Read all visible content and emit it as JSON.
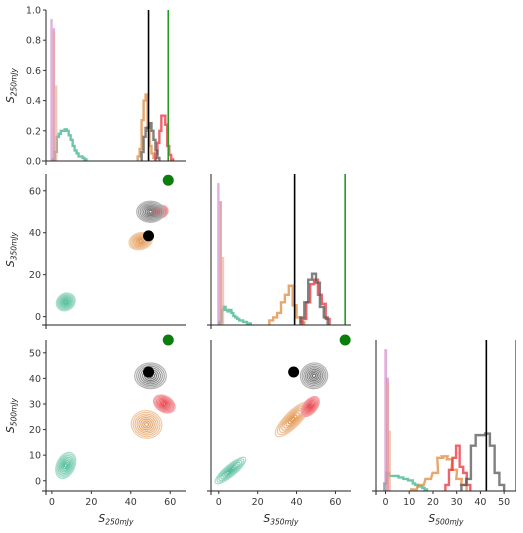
{
  "chart_data": {
    "type": "pairplot",
    "variables": [
      "S_250mJy",
      "S_350mJy",
      "S_500mJy"
    ],
    "axis_labels": {
      "S_250mJy": {
        "main": "S",
        "sub": "250mJy"
      },
      "S_350mJy": {
        "main": "S",
        "sub": "350mJy"
      },
      "S_500mJy": {
        "main": "S",
        "sub": "500mJy"
      }
    },
    "ranges": {
      "S_250mJy": [
        -3,
        68
      ],
      "S_350mJy": [
        -4,
        68
      ],
      "S_500mJy": [
        -4,
        55
      ]
    },
    "density_ylim": [
      0,
      1.0
    ],
    "ticks": {
      "S_250mJy": [
        0,
        20,
        40,
        60
      ],
      "S_350mJy": [
        0,
        20,
        40,
        60
      ],
      "S_500mJy": [
        0,
        10,
        20,
        30,
        40,
        50
      ],
      "density": [
        "0.0",
        "0.2",
        "0.4",
        "0.6",
        "0.8",
        "1.0"
      ]
    },
    "series": [
      {
        "id": "teal",
        "color": "#3db38e",
        "hist_fill": false,
        "means": {
          "S_250mJy": 7,
          "S_350mJy": 6,
          "S_500mJy": 4
        },
        "sds": {
          "S_250mJy": 3.5,
          "S_350mJy": 5,
          "S_500mJy": 4
        },
        "hist": {
          "S_250mJy": [
            [
              1,
              0.01
            ],
            [
              2,
              0.06
            ],
            [
              3,
              0.16
            ],
            [
              4,
              0.18
            ],
            [
              5,
              0.2
            ],
            [
              6,
              0.2
            ],
            [
              7,
              0.21
            ],
            [
              8,
              0.2
            ],
            [
              9,
              0.17
            ],
            [
              10,
              0.14
            ],
            [
              11,
              0.1
            ],
            [
              12,
              0.07
            ],
            [
              13,
              0.05
            ],
            [
              14,
              0.03
            ],
            [
              15,
              0.03
            ],
            [
              16,
              0.02
            ],
            [
              17,
              0.01
            ]
          ],
          "S_350mJy": [
            [
              1,
              0.02
            ],
            [
              2,
              0.1
            ],
            [
              3,
              0.12
            ],
            [
              4,
              0.1
            ],
            [
              5,
              0.09
            ],
            [
              6,
              0.1
            ],
            [
              7,
              0.08
            ],
            [
              8,
              0.06
            ],
            [
              9,
              0.05
            ],
            [
              10,
              0.04
            ],
            [
              11,
              0.03
            ],
            [
              12,
              0.03
            ],
            [
              13,
              0.02
            ],
            [
              14,
              0.02
            ],
            [
              15,
              0.01
            ],
            [
              16,
              0.01
            ]
          ],
          "S_500mJy": [
            [
              0,
              0.05
            ],
            [
              1,
              0.12
            ],
            [
              2,
              0.1
            ],
            [
              3,
              0.1
            ],
            [
              4,
              0.1
            ],
            [
              5,
              0.1
            ],
            [
              6,
              0.09
            ],
            [
              7,
              0.09
            ],
            [
              8,
              0.08
            ],
            [
              9,
              0.08
            ],
            [
              10,
              0.07
            ],
            [
              11,
              0.07
            ],
            [
              12,
              0.05
            ],
            [
              13,
              0.04
            ],
            [
              14,
              0.03
            ],
            [
              15,
              0.03
            ],
            [
              16,
              0.02
            ],
            [
              17,
              0.01
            ]
          ]
        },
        "kde": [
          {
            "x": "S_250mJy",
            "y": "S_350mJy",
            "cx": 7,
            "cy": 7,
            "rx": 5,
            "ry": 4,
            "angle": -35
          },
          {
            "x": "S_250mJy",
            "y": "S_500mJy",
            "cx": 7,
            "cy": 6,
            "rx": 7,
            "ry": 3.5,
            "angle": -65
          },
          {
            "x": "S_350mJy",
            "y": "S_500mJy",
            "cx": 6,
            "cy": 4,
            "rx": 10,
            "ry": 2.2,
            "angle": -40
          }
        ]
      },
      {
        "id": "orange",
        "color": "#e08a3c",
        "hist_fill": false,
        "means": {
          "S_250mJy": 47,
          "S_350mJy": 36,
          "S_500mJy": 24
        },
        "sds": {
          "S_250mJy": 3,
          "S_350mJy": 4,
          "S_500mJy": 6
        },
        "hist": {
          "S_250mJy": [
            [
              44,
              0.03
            ],
            [
              45,
              0.08
            ],
            [
              46,
              0.27
            ],
            [
              47,
              0.4
            ],
            [
              48,
              0.44
            ],
            [
              49,
              0.2
            ],
            [
              50,
              0.1
            ],
            [
              51,
              0.05
            ],
            [
              52,
              0.02
            ]
          ],
          "S_350mJy": [
            [
              27,
              0.03
            ],
            [
              29,
              0.05
            ],
            [
              31,
              0.08
            ],
            [
              33,
              0.15
            ],
            [
              35,
              0.2
            ],
            [
              37,
              0.26
            ],
            [
              39,
              0.13
            ],
            [
              41,
              0.05
            ],
            [
              43,
              0.02
            ]
          ],
          "S_500mJy": [
            [
              12,
              0.01
            ],
            [
              15,
              0.04
            ],
            [
              18,
              0.08
            ],
            [
              21,
              0.12
            ],
            [
              23,
              0.22
            ],
            [
              25,
              0.23
            ],
            [
              27,
              0.21
            ],
            [
              29,
              0.14
            ],
            [
              31,
              0.08
            ],
            [
              33,
              0.04
            ]
          ]
        },
        "kde": [
          {
            "x": "S_250mJy",
            "y": "S_350mJy",
            "cx": 45,
            "cy": 36,
            "rx": 6,
            "ry": 4,
            "angle": -15
          },
          {
            "x": "S_250mJy",
            "y": "S_500mJy",
            "cx": 48,
            "cy": 22,
            "rx": 7,
            "ry": 6,
            "angle": -80
          },
          {
            "x": "S_350mJy",
            "y": "S_500mJy",
            "cx": 38,
            "cy": 24,
            "rx": 12,
            "ry": 3,
            "angle": -45
          }
        ]
      },
      {
        "id": "red",
        "color": "#e8303a",
        "hist_fill": false,
        "means": {
          "S_250mJy": 56,
          "S_350mJy": 49,
          "S_500mJy": 30
        },
        "sds": {
          "S_250mJy": 2.5,
          "S_350mJy": 3,
          "S_500mJy": 4
        },
        "hist": {
          "S_250mJy": [
            [
              53,
              0.05
            ],
            [
              54,
              0.12
            ],
            [
              55,
              0.2
            ],
            [
              56,
              0.3
            ],
            [
              57,
              0.3
            ],
            [
              58,
              0.24
            ],
            [
              59,
              0.1
            ],
            [
              60,
              0.04
            ],
            [
              61,
              0.01
            ]
          ],
          "S_350mJy": [
            [
              44,
              0.04
            ],
            [
              46,
              0.15
            ],
            [
              48,
              0.27
            ],
            [
              50,
              0.3
            ],
            [
              52,
              0.2
            ],
            [
              54,
              0.14
            ],
            [
              56,
              0.04
            ]
          ],
          "S_500mJy": [
            [
              26,
              0.04
            ],
            [
              27.5,
              0.14
            ],
            [
              29,
              0.22
            ],
            [
              30.5,
              0.3
            ],
            [
              32,
              0.16
            ],
            [
              33.5,
              0.12
            ],
            [
              35,
              0.04
            ]
          ]
        },
        "kde": [
          {
            "x": "S_250mJy",
            "y": "S_350mJy",
            "cx": 55,
            "cy": 50,
            "rx": 4,
            "ry": 3,
            "angle": -20
          },
          {
            "x": "S_250mJy",
            "y": "S_500mJy",
            "cx": 57,
            "cy": 30,
            "rx": 4,
            "ry": 4.5,
            "angle": -60
          },
          {
            "x": "S_350mJy",
            "y": "S_500mJy",
            "cx": 47,
            "cy": 29,
            "rx": 6,
            "ry": 2.6,
            "angle": -50
          }
        ]
      },
      {
        "id": "grey",
        "color": "#555555",
        "hist_fill": false,
        "means": {
          "S_250mJy": 49,
          "S_350mJy": 50,
          "S_500mJy": 42
        },
        "sds": {
          "S_250mJy": 3,
          "S_350mJy": 3,
          "S_500mJy": 3
        },
        "hist": {
          "S_250mJy": [
            [
              46,
              0.06
            ],
            [
              47,
              0.16
            ],
            [
              48,
              0.22
            ],
            [
              49,
              0.22
            ],
            [
              50,
              0.25
            ],
            [
              51,
              0.2
            ],
            [
              52,
              0.14
            ],
            [
              53,
              0.07
            ],
            [
              54,
              0.02
            ]
          ],
          "S_350mJy": [
            [
              43,
              0.05
            ],
            [
              45,
              0.15
            ],
            [
              47,
              0.3
            ],
            [
              49,
              0.34
            ],
            [
              51,
              0.28
            ],
            [
              53,
              0.12
            ],
            [
              55,
              0.05
            ]
          ],
          "S_500mJy": [
            [
              33,
              0.04
            ],
            [
              35,
              0.08
            ],
            [
              37,
              0.3
            ],
            [
              39,
              0.37
            ],
            [
              41,
              0.37
            ],
            [
              43,
              0.38
            ],
            [
              45,
              0.3
            ],
            [
              47,
              0.12
            ],
            [
              49,
              0.04
            ]
          ]
        },
        "kde": [
          {
            "x": "S_250mJy",
            "y": "S_350mJy",
            "cx": 50,
            "cy": 50,
            "rx": 7,
            "ry": 5,
            "angle": 0
          },
          {
            "x": "S_250mJy",
            "y": "S_500mJy",
            "cx": 50,
            "cy": 41,
            "rx": 8,
            "ry": 5,
            "angle": 0
          },
          {
            "x": "S_350mJy",
            "y": "S_500mJy",
            "cx": 49,
            "cy": 41,
            "rx": 7,
            "ry": 5,
            "angle": -15
          }
        ]
      },
      {
        "id": "pink",
        "color": "#cc79c4",
        "hist_fill": true,
        "means": {
          "S_250mJy": 0,
          "S_350mJy": 0,
          "S_500mJy": 0
        },
        "hist": {
          "S_250mJy": [
            [
              -0.8,
              0.94
            ],
            [
              0.4,
              0.88
            ]
          ],
          "S_350mJy": [
            [
              -0.8,
              0.94
            ],
            [
              0.4,
              0.82
            ]
          ],
          "S_500mJy": [
            [
              -0.5,
              0.94
            ],
            [
              0.3,
              0.75
            ]
          ]
        }
      },
      {
        "id": "salmon",
        "color": "#e6a48f",
        "hist_fill": true,
        "hist": {
          "S_250mJy": [
            [
              0.4,
              0.86
            ],
            [
              1.6,
              0.5
            ]
          ],
          "S_350mJy": [
            [
              0.4,
              0.82
            ],
            [
              1.6,
              0.45
            ]
          ],
          "S_500mJy": [
            [
              0.3,
              0.72
            ],
            [
              1.1,
              0.4
            ]
          ]
        }
      }
    ],
    "reference_lines": [
      {
        "variable": "S_250mJy",
        "value": 49,
        "color": "#000000"
      },
      {
        "variable": "S_250mJy",
        "value": 59,
        "color": "#239b23"
      },
      {
        "variable": "S_350mJy",
        "value": 39,
        "color": "#000000"
      },
      {
        "variable": "S_350mJy",
        "value": 65,
        "color": "#239b23"
      },
      {
        "variable": "S_500mJy",
        "value": 42.5,
        "color": "#000000"
      },
      {
        "variable": "S_500mJy",
        "value": 55,
        "color": "#239b23"
      }
    ],
    "reference_points": [
      {
        "color": "#000000",
        "values": {
          "S_250mJy": 49,
          "S_350mJy": 38.5,
          "S_500mJy": 42.5
        }
      },
      {
        "color": "#0a7d0a",
        "values": {
          "S_250mJy": 59,
          "S_350mJy": 65,
          "S_500mJy": 55
        }
      }
    ],
    "panels": [
      {
        "row": 0,
        "col": 0,
        "kind": "hist",
        "x": "S_250mJy"
      },
      {
        "row": 1,
        "col": 0,
        "kind": "kde",
        "x": "S_250mJy",
        "y": "S_350mJy"
      },
      {
        "row": 1,
        "col": 1,
        "kind": "hist",
        "x": "S_350mJy"
      },
      {
        "row": 2,
        "col": 0,
        "kind": "kde",
        "x": "S_250mJy",
        "y": "S_500mJy"
      },
      {
        "row": 2,
        "col": 1,
        "kind": "kde",
        "x": "S_350mJy",
        "y": "S_500mJy"
      },
      {
        "row": 2,
        "col": 2,
        "kind": "hist",
        "x": "S_500mJy"
      }
    ],
    "grid": false,
    "legend": "none"
  }
}
